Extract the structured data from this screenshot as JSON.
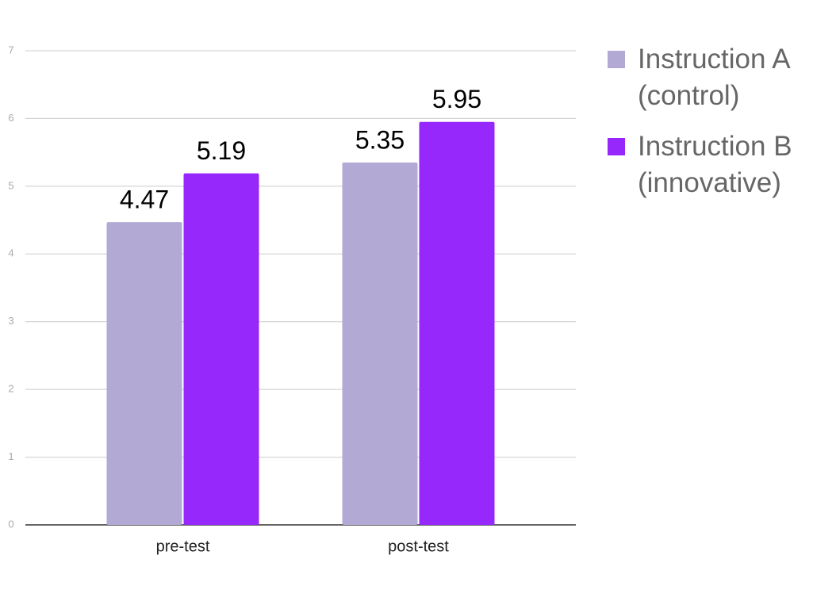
{
  "chart_data": {
    "type": "bar",
    "categories": [
      "pre-test",
      "post-test"
    ],
    "series": [
      {
        "name": "Instruction A (control)",
        "color": "#b3a9d5",
        "values": [
          4.47,
          5.35
        ]
      },
      {
        "name": "Instruction B (innovative)",
        "color": "#9628fb",
        "values": [
          5.19,
          5.95
        ]
      }
    ],
    "ylim": [
      0,
      7
    ],
    "yticks": [
      0,
      1,
      2,
      3,
      4,
      5,
      6,
      7
    ],
    "grid": true,
    "legend": "right"
  }
}
